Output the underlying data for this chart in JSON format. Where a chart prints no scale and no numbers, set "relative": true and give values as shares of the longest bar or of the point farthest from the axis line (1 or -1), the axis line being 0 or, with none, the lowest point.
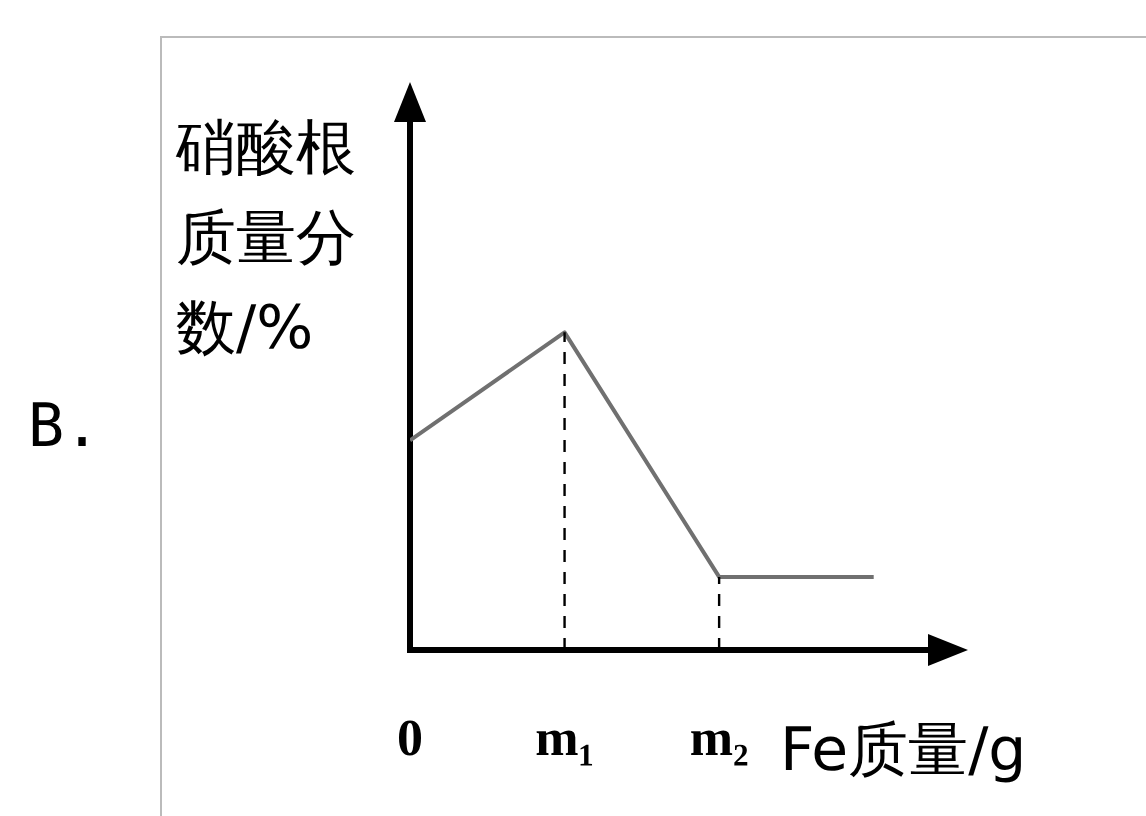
{
  "chart_data": {
    "type": "line",
    "relative": true,
    "ylabel": "硝酸根质量分数/%",
    "xlabel": "Fe质量/g",
    "annotations": [
      "B."
    ],
    "categories": [
      "0",
      "m₁",
      "m₂",
      null
    ],
    "series": [
      {
        "color": "#707070",
        "values": [
          0.66,
          1,
          0.23,
          0.23
        ]
      }
    ],
    "ref_lines": [
      {
        "axis": "x",
        "value": "m₁",
        "line_style": "dashed",
        "color": "#000000"
      },
      {
        "axis": "x",
        "value": "m₂",
        "line_style": "dashed",
        "color": "#000000"
      }
    ],
    "grid": false,
    "legend": false,
    "marker": "none",
    "line_style": "solid"
  }
}
